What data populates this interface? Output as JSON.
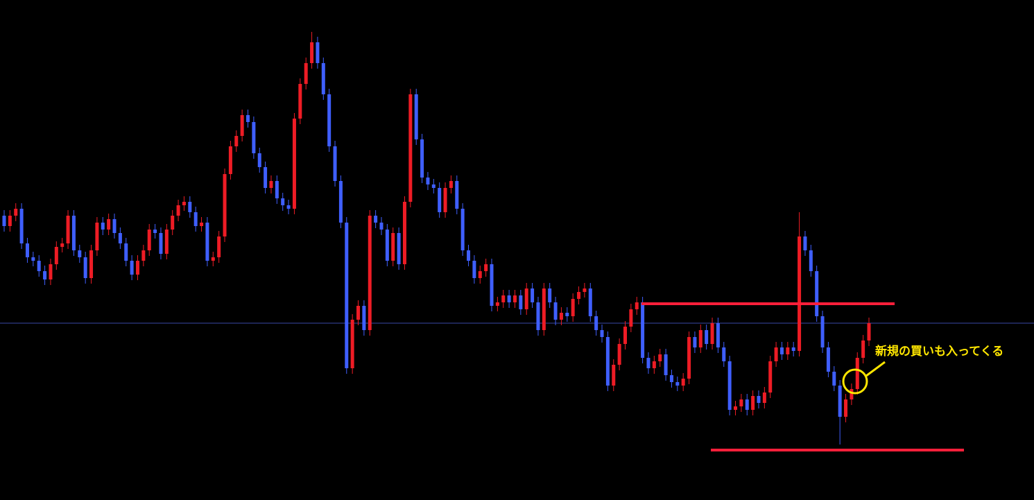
{
  "chart_data": {
    "type": "candlestick",
    "up_color": "#ee1c25",
    "down_color": "#3f5fff",
    "level_color": "#ff1f3a",
    "price_line_color": "#3a4aa8",
    "ylim": [
      0,
      721
    ],
    "open": [
      410,
      395,
      410,
      420,
      370,
      350,
      345,
      330,
      318,
      340,
      365,
      370,
      410,
      360,
      350,
      320,
      360,
      400,
      390,
      405,
      385,
      370,
      345,
      325,
      345,
      360,
      390,
      385,
      355,
      390,
      410,
      425,
      430,
      415,
      395,
      400,
      345,
      350,
      380,
      470,
      510,
      525,
      555,
      545,
      500,
      480,
      450,
      460,
      435,
      425,
      420,
      550,
      600,
      630,
      660,
      630,
      585,
      510,
      460,
      400,
      190,
      260,
      280,
      245,
      410,
      400,
      390,
      345,
      385,
      340,
      430,
      585,
      520,
      465,
      455,
      450,
      415,
      450,
      460,
      420,
      360,
      345,
      320,
      330,
      340,
      280,
      285,
      295,
      285,
      295,
      275,
      305,
      285,
      245,
      305,
      285,
      260,
      270,
      265,
      290,
      300,
      305,
      265,
      245,
      235,
      165,
      195,
      225,
      250,
      275,
      285,
      205,
      190,
      200,
      210,
      180,
      170,
      165,
      175,
      235,
      220,
      245,
      225,
      255,
      220,
      200,
      130,
      135,
      145,
      130,
      150,
      140,
      155,
      200,
      220,
      210,
      220,
      215,
      380,
      360,
      330,
      265,
      220,
      185,
      165,
      120,
      145,
      160,
      205,
      230
    ],
    "high": [
      418,
      418,
      428,
      428,
      378,
      358,
      353,
      338,
      348,
      373,
      378,
      418,
      418,
      368,
      358,
      368,
      408,
      408,
      413,
      413,
      393,
      378,
      353,
      353,
      368,
      398,
      398,
      393,
      398,
      418,
      433,
      438,
      438,
      423,
      408,
      408,
      358,
      388,
      478,
      518,
      533,
      563,
      563,
      553,
      508,
      488,
      468,
      468,
      443,
      433,
      558,
      608,
      638,
      675,
      668,
      638,
      593,
      518,
      468,
      408,
      268,
      288,
      288,
      418,
      418,
      408,
      398,
      393,
      393,
      438,
      593,
      593,
      528,
      473,
      463,
      458,
      458,
      468,
      468,
      428,
      368,
      353,
      338,
      348,
      348,
      293,
      303,
      303,
      303,
      303,
      313,
      313,
      293,
      313,
      313,
      293,
      278,
      278,
      298,
      308,
      313,
      313,
      273,
      253,
      243,
      203,
      233,
      258,
      283,
      293,
      293,
      213,
      208,
      218,
      218,
      188,
      178,
      183,
      243,
      243,
      253,
      253,
      263,
      263,
      228,
      208,
      143,
      153,
      153,
      158,
      158,
      163,
      208,
      228,
      228,
      228,
      228,
      415,
      388,
      368,
      338,
      273,
      228,
      193,
      173,
      153,
      168,
      213,
      238,
      263
    ],
    "low": [
      387,
      387,
      402,
      362,
      342,
      337,
      322,
      310,
      310,
      332,
      357,
      362,
      352,
      342,
      312,
      312,
      352,
      382,
      382,
      377,
      362,
      337,
      317,
      317,
      337,
      352,
      377,
      347,
      347,
      382,
      402,
      417,
      407,
      387,
      387,
      337,
      337,
      342,
      372,
      462,
      502,
      517,
      537,
      492,
      472,
      442,
      442,
      427,
      417,
      412,
      412,
      542,
      592,
      622,
      622,
      577,
      502,
      452,
      392,
      182,
      182,
      252,
      237,
      237,
      392,
      382,
      337,
      337,
      332,
      332,
      422,
      512,
      457,
      447,
      442,
      407,
      407,
      442,
      412,
      352,
      337,
      312,
      312,
      322,
      272,
      272,
      277,
      277,
      277,
      267,
      267,
      277,
      237,
      237,
      277,
      252,
      252,
      257,
      257,
      282,
      292,
      257,
      237,
      227,
      157,
      157,
      187,
      217,
      242,
      267,
      197,
      182,
      182,
      192,
      172,
      162,
      157,
      157,
      167,
      212,
      212,
      217,
      217,
      212,
      192,
      122,
      122,
      127,
      122,
      122,
      132,
      132,
      147,
      192,
      202,
      202,
      207,
      207,
      352,
      322,
      257,
      212,
      177,
      157,
      80,
      112,
      137,
      152,
      197,
      222
    ],
    "close": [
      395,
      410,
      420,
      370,
      350,
      345,
      330,
      318,
      340,
      365,
      370,
      410,
      360,
      350,
      320,
      360,
      400,
      390,
      405,
      385,
      370,
      345,
      325,
      345,
      360,
      390,
      385,
      355,
      390,
      410,
      425,
      430,
      415,
      395,
      400,
      345,
      350,
      380,
      470,
      510,
      525,
      555,
      545,
      500,
      480,
      450,
      460,
      435,
      425,
      420,
      550,
      600,
      630,
      660,
      630,
      585,
      510,
      460,
      400,
      190,
      260,
      280,
      245,
      410,
      400,
      390,
      345,
      385,
      340,
      430,
      585,
      520,
      465,
      455,
      450,
      415,
      450,
      460,
      420,
      360,
      345,
      320,
      330,
      340,
      280,
      285,
      295,
      285,
      295,
      275,
      305,
      285,
      245,
      305,
      285,
      260,
      270,
      265,
      290,
      300,
      305,
      265,
      245,
      235,
      165,
      195,
      225,
      250,
      275,
      285,
      205,
      190,
      200,
      210,
      180,
      170,
      165,
      175,
      235,
      220,
      245,
      225,
      255,
      220,
      200,
      130,
      135,
      145,
      130,
      150,
      140,
      155,
      200,
      220,
      210,
      220,
      215,
      380,
      360,
      330,
      265,
      220,
      185,
      165,
      120,
      145,
      160,
      205,
      230,
      255
    ],
    "levels": [
      283,
      72
    ],
    "price_line": 255,
    "annotation": "新規の買いも入ってくる",
    "annotation_color": "#ffe600"
  }
}
